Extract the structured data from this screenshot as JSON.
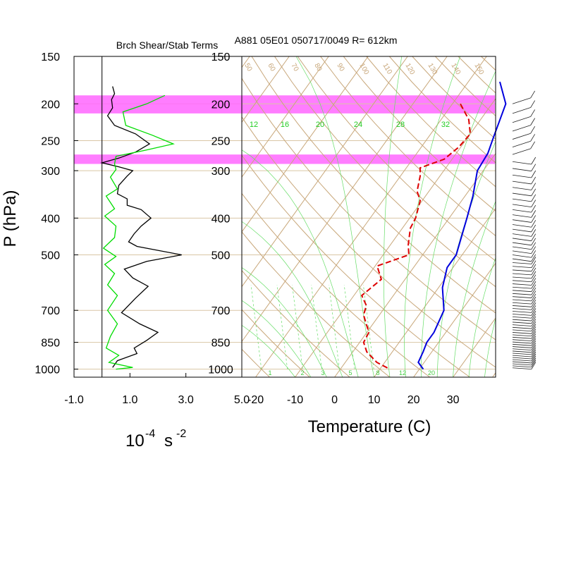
{
  "chart_data": [
    {
      "type": "line",
      "title": "Brch Shear/Stab Terms",
      "xlabel_base": "10",
      "xlabel_exp": "-4",
      "xlabel_unit": "s",
      "xlabel_unit_exp": "-2",
      "ylabel": "P (hPa)",
      "xlim": [
        -1.0,
        5.0
      ],
      "x_ticks": [
        "-1.0",
        "1.0",
        "3.0",
        "5.0"
      ],
      "y_ticks": [
        "150",
        "200",
        "250",
        "300",
        "400",
        "500",
        "700",
        "850",
        "1000"
      ],
      "ylim": [
        1050,
        150
      ],
      "y_scale": "log",
      "shaded_layers_hPa": [
        [
          190,
          212
        ],
        [
          272,
          288
        ]
      ],
      "series": [
        {
          "color": "#000000",
          "points": [
            [
              0.38,
              180
            ],
            [
              0.45,
              188
            ],
            [
              0.34,
              195
            ],
            [
              0.38,
              205
            ],
            [
              0.2,
              215
            ],
            [
              0.45,
              228
            ],
            [
              1.2,
              240
            ],
            [
              1.7,
              255
            ],
            [
              1.2,
              268
            ],
            [
              0.6,
              278
            ],
            [
              0.0,
              286
            ],
            [
              0.6,
              293
            ],
            [
              1.1,
              300
            ],
            [
              0.9,
              310
            ],
            [
              0.6,
              328
            ],
            [
              0.55,
              345
            ],
            [
              0.9,
              356
            ],
            [
              0.9,
              370
            ],
            [
              1.4,
              380
            ],
            [
              1.75,
              400
            ],
            [
              1.4,
              420
            ],
            [
              1.15,
              440
            ],
            [
              0.95,
              462
            ],
            [
              1.25,
              475
            ],
            [
              2.85,
              500
            ],
            [
              1.6,
              520
            ],
            [
              0.8,
              545
            ],
            [
              1.1,
              575
            ],
            [
              1.65,
              605
            ],
            [
              1.2,
              650
            ],
            [
              0.7,
              710
            ],
            [
              1.35,
              760
            ],
            [
              2.0,
              800
            ],
            [
              1.6,
              840
            ],
            [
              1.15,
              880
            ],
            [
              1.25,
              910
            ],
            [
              0.55,
              950
            ],
            [
              0.38,
              990
            ]
          ]
        },
        {
          "color": "#00dd00",
          "points": [
            [
              2.25,
              190
            ],
            [
              1.6,
              200
            ],
            [
              0.75,
              210
            ],
            [
              0.85,
              228
            ],
            [
              1.8,
              242
            ],
            [
              2.55,
              255
            ],
            [
              1.55,
              265
            ],
            [
              0.5,
              275
            ],
            [
              0.45,
              288
            ],
            [
              0.5,
              298
            ],
            [
              0.3,
              312
            ],
            [
              0.55,
              335
            ],
            [
              0.15,
              350
            ],
            [
              0.45,
              378
            ],
            [
              0.1,
              395
            ],
            [
              0.5,
              420
            ],
            [
              0.45,
              450
            ],
            [
              0.05,
              480
            ],
            [
              0.5,
              505
            ],
            [
              0.1,
              530
            ],
            [
              0.45,
              560
            ],
            [
              0.2,
              600
            ],
            [
              0.55,
              640
            ],
            [
              0.2,
              700
            ],
            [
              0.55,
              760
            ],
            [
              0.3,
              820
            ],
            [
              0.15,
              880
            ],
            [
              0.6,
              920
            ],
            [
              0.25,
              960
            ],
            [
              1.1,
              990
            ],
            [
              0.5,
              1000
            ]
          ]
        }
      ]
    },
    {
      "type": "line",
      "title": "A881 05E01 050717/0049 R= 612km",
      "xlabel": "Temperature (C)",
      "x_ticks": [
        "-20",
        "-10",
        "0",
        "10",
        "20",
        "30"
      ],
      "y_ticks": [
        "150",
        "200",
        "250",
        "300",
        "400",
        "500",
        "700",
        "850",
        "1000"
      ],
      "ylim": [
        1050,
        150
      ],
      "y_scale": "log",
      "skew": "skew-T log-P",
      "mixing_ratio_top_labels": [
        "12",
        "16",
        "20",
        "24",
        "28",
        "32"
      ],
      "mixing_ratio_bottom_labels": [
        "1",
        "2",
        "3",
        "5",
        "8",
        "12",
        "20"
      ],
      "theta_labels": [
        "50",
        "60",
        "70",
        "80",
        "90",
        "100",
        "110",
        "120",
        "130",
        "140",
        "150"
      ],
      "series": [
        {
          "color": "#0000dd",
          "style": "solid",
          "points": [
            [
              -12.0,
              175
            ],
            [
              -6.5,
              200
            ],
            [
              -3.5,
              245
            ],
            [
              -2.0,
              270
            ],
            [
              -1.5,
              300
            ],
            [
              2.0,
              350
            ],
            [
              4.5,
              400
            ],
            [
              8.5,
              500
            ],
            [
              8.5,
              540
            ],
            [
              11.0,
              610
            ],
            [
              15.5,
              700
            ],
            [
              17.0,
              800
            ],
            [
              17.0,
              850
            ],
            [
              17.8,
              900
            ],
            [
              18.5,
              960
            ],
            [
              21.0,
              1000
            ]
          ]
        },
        {
          "color": "#dd0000",
          "style": "dashed",
          "points": [
            [
              -18.0,
              200
            ],
            [
              -13.0,
              220
            ],
            [
              -10.0,
              240
            ],
            [
              -10.5,
              260
            ],
            [
              -12.0,
              280
            ],
            [
              -16.5,
              295
            ],
            [
              -15.0,
              310
            ],
            [
              -13.0,
              340
            ],
            [
              -10.5,
              360
            ],
            [
              -8.5,
              400
            ],
            [
              -8.0,
              425
            ],
            [
              -5.5,
              470
            ],
            [
              -3.5,
              500
            ],
            [
              -9.5,
              535
            ],
            [
              -6.0,
              580
            ],
            [
              -8.0,
              640
            ],
            [
              -5.0,
              680
            ],
            [
              -4.0,
              720
            ],
            [
              0.5,
              800
            ],
            [
              1.0,
              850
            ],
            [
              3.5,
              900
            ],
            [
              8.0,
              960
            ],
            [
              12.5,
              1000
            ]
          ]
        }
      ],
      "wind_barbs": "right-side staff profile, 150-1000 hPa"
    }
  ]
}
